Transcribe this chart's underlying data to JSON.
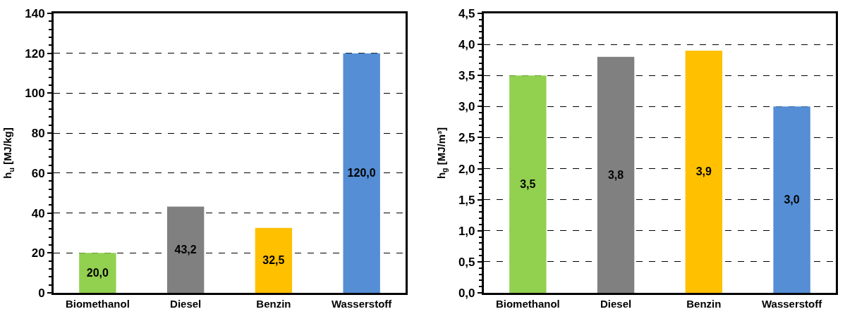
{
  "chart_data": [
    {
      "type": "bar",
      "ylabel": "h$_{u}$ [MJ/kg]",
      "categories": [
        "Biomethanol",
        "Diesel",
        "Benzin",
        "Wasserstoff"
      ],
      "values": [
        20.0,
        43.2,
        32.5,
        120.0
      ],
      "colors": [
        "#92d050",
        "#808080",
        "#ffc000",
        "#558ed5"
      ],
      "value_labels": [
        "20,0",
        "43,2",
        "32,5",
        "120,0"
      ],
      "ylim": [
        0,
        140
      ],
      "yticks": [
        0,
        20,
        40,
        60,
        80,
        100,
        120,
        140
      ],
      "grid": "y"
    },
    {
      "type": "bar",
      "ylabel": "h$_{g}$ [MJ/m³]",
      "categories": [
        "Biomethanol",
        "Diesel",
        "Benzin",
        "Wasserstoff"
      ],
      "values": [
        3.5,
        3.8,
        3.9,
        3.0
      ],
      "colors": [
        "#92d050",
        "#808080",
        "#ffc000",
        "#558ed5"
      ],
      "value_labels": [
        "3,5",
        "3,8",
        "3,9",
        "3,0"
      ],
      "ylim": [
        0,
        4.5
      ],
      "yticks": [
        {
          "value": 0,
          "label": "0,0"
        },
        {
          "value": 0.5,
          "label": "0,5"
        },
        {
          "value": 1,
          "label": "1,0"
        },
        {
          "value": 1.5,
          "label": "1,5"
        },
        {
          "value": 2,
          "label": "2,0"
        },
        {
          "value": 2.5,
          "label": "2,5"
        },
        {
          "value": 3,
          "label": "3,0"
        },
        {
          "value": 3.5,
          "label": "3,5"
        },
        {
          "value": 4,
          "label": "4,0"
        },
        {
          "value": 4.5,
          "label": "4,5"
        }
      ],
      "grid": "y"
    }
  ]
}
